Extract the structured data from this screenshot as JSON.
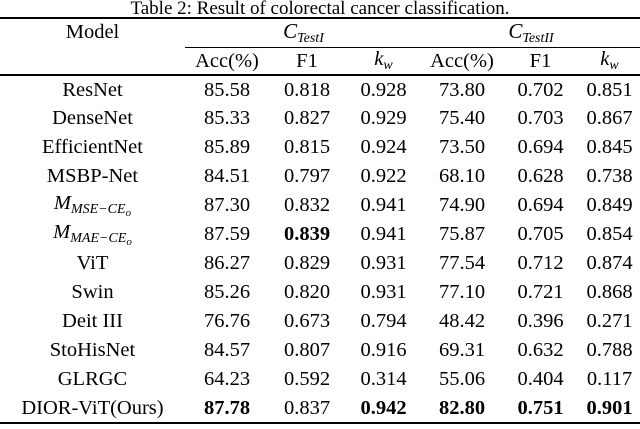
{
  "caption": "Table 2: Result of colorectal cancer classification.",
  "colors": {
    "text": "#000000",
    "background": "#ffffff",
    "rule": "#000000"
  },
  "header": {
    "model_label": "Model",
    "groups": [
      {
        "base": "C",
        "sub": "TestI"
      },
      {
        "base": "C",
        "sub": "TestII"
      }
    ],
    "cols": {
      "acc1": "Acc(%)",
      "f1a": "F1",
      "acc2": "Acc(%)",
      "f1b": "F1"
    },
    "kw": {
      "base": "k",
      "sub": "w"
    }
  },
  "rows": [
    {
      "model": "ResNet",
      "values": [
        "85.58",
        "0.818",
        "0.928",
        "73.80",
        "0.702",
        "0.851"
      ]
    },
    {
      "model": "DenseNet",
      "values": [
        "85.33",
        "0.827",
        "0.929",
        "75.40",
        "0.703",
        "0.867"
      ]
    },
    {
      "model": "EfficientNet",
      "values": [
        "85.89",
        "0.815",
        "0.924",
        "73.50",
        "0.694",
        "0.845"
      ]
    },
    {
      "model": "MSBP-Net",
      "values": [
        "84.51",
        "0.797",
        "0.922",
        "68.10",
        "0.628",
        "0.738"
      ]
    },
    {
      "model": {
        "base": "M",
        "sub": "MSE−CE",
        "subsub": "o"
      },
      "values": [
        "87.30",
        "0.832",
        "0.941",
        "74.90",
        "0.694",
        "0.849"
      ]
    },
    {
      "model": {
        "base": "M",
        "sub": "MAE−CE",
        "subsub": "o"
      },
      "values": [
        "87.59",
        "0.839",
        "0.941",
        "75.87",
        "0.705",
        "0.854"
      ],
      "bold": [
        false,
        true,
        false,
        false,
        false,
        false
      ]
    },
    {
      "model": "ViT",
      "values": [
        "86.27",
        "0.829",
        "0.931",
        "77.54",
        "0.712",
        "0.874"
      ]
    },
    {
      "model": "Swin",
      "values": [
        "85.26",
        "0.820",
        "0.931",
        "77.10",
        "0.721",
        "0.868"
      ]
    },
    {
      "model": "Deit III",
      "values": [
        "76.76",
        "0.673",
        "0.794",
        "48.42",
        "0.396",
        "0.271"
      ]
    },
    {
      "model": "StoHisNet",
      "values": [
        "84.57",
        "0.807",
        "0.916",
        "69.31",
        "0.632",
        "0.788"
      ]
    },
    {
      "model": "GLRGC",
      "values": [
        "64.23",
        "0.592",
        "0.314",
        "55.06",
        "0.404",
        "0.117"
      ]
    },
    {
      "model": "DIOR-ViT(Ours)",
      "values": [
        "87.78",
        "0.837",
        "0.942",
        "82.80",
        "0.751",
        "0.901"
      ],
      "bold": [
        true,
        false,
        true,
        true,
        true,
        true
      ]
    }
  ]
}
